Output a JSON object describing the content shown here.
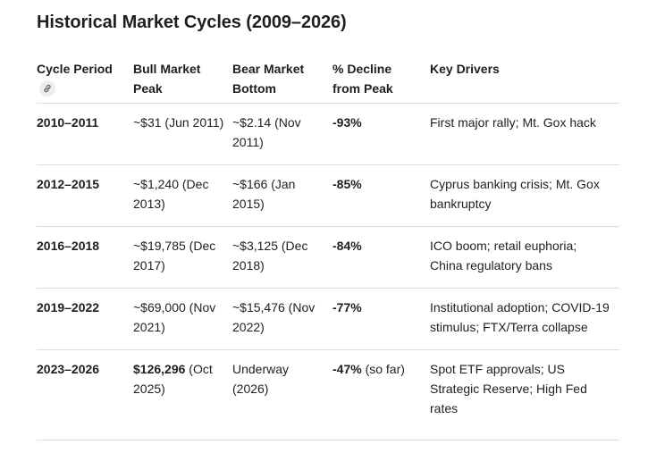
{
  "title": "Historical Market Cycles (2009–2026)",
  "headers": {
    "cycle_period": "Cycle Period",
    "bull_peak": "Bull Market Peak",
    "bear_bottom": "Bear Market Bottom",
    "decline": "% Decline from Peak",
    "drivers": "Key Drivers"
  },
  "icons": {
    "cycle_link": "link-icon"
  },
  "rows": [
    {
      "period": "2010–2011",
      "bull_peak": "~$31 (Jun 2011)",
      "bear_bottom": "~$2.14 (Nov 2011)",
      "decline": "-93%",
      "drivers": "First major rally; Mt. Gox hack"
    },
    {
      "period": "2012–2015",
      "bull_peak": "~$1,240 (Dec 2013)",
      "bear_bottom": "~$166 (Jan 2015)",
      "decline": "-85%",
      "drivers": "Cyprus banking crisis; Mt. Gox bankruptcy"
    },
    {
      "period": "2016–2018",
      "bull_peak": "~$19,785 (Dec 2017)",
      "bear_bottom": "~$3,125 (Dec 2018)",
      "decline": "-84%",
      "drivers": "ICO boom; retail euphoria; China regulatory bans"
    },
    {
      "period": "2019–2022",
      "bull_peak": "~$69,000 (Nov 2021)",
      "bear_bottom": "~$15,476 (Nov 2022)",
      "decline": "-77%",
      "drivers": "Institutional adoption; COVID-19 stimulus; FTX/Terra collapse"
    },
    {
      "period": "2023–2026",
      "bull_peak_value": "$126,296",
      "bull_peak_date": "(Oct 2025)",
      "bear_bottom": "Underway (2026)",
      "decline_value": "-47%",
      "decline_note": "(so far)",
      "drivers": "Spot ETF approvals; US Strategic Reserve; High Fed rates"
    }
  ]
}
